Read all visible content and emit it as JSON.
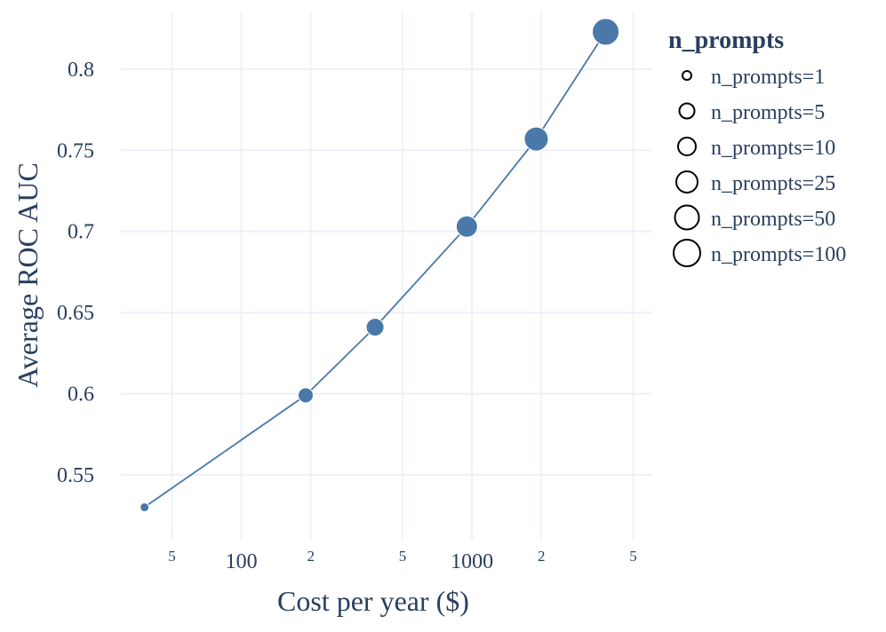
{
  "chart_data": {
    "type": "scatter",
    "xlabel": "Cost per year ($)",
    "ylabel": "Average ROC AUC",
    "x_scale": "log",
    "xlim": [
      30,
      6000
    ],
    "ylim": [
      0.51,
      0.835
    ],
    "grid": true,
    "legend_title": "n_prompts",
    "legend_position": "top-right",
    "line_color": "#4a78a8",
    "marker_color": "#4a78a8",
    "x_major_ticks": [
      {
        "value": 100,
        "label": "100"
      },
      {
        "value": 1000,
        "label": "1000"
      }
    ],
    "x_minor_ticks": [
      {
        "value": 50,
        "label": "5"
      },
      {
        "value": 200,
        "label": "2"
      },
      {
        "value": 500,
        "label": "5"
      },
      {
        "value": 2000,
        "label": "2"
      },
      {
        "value": 5000,
        "label": "5"
      }
    ],
    "y_ticks": [
      {
        "value": 0.55,
        "label": "0.55"
      },
      {
        "value": 0.6,
        "label": "0.6"
      },
      {
        "value": 0.65,
        "label": "0.65"
      },
      {
        "value": 0.7,
        "label": "0.7"
      },
      {
        "value": 0.75,
        "label": "0.75"
      },
      {
        "value": 0.8,
        "label": "0.8"
      }
    ],
    "series": [
      {
        "name": "n_prompts=1",
        "n_prompts": 1,
        "x": 38,
        "y": 0.53
      },
      {
        "name": "n_prompts=5",
        "n_prompts": 5,
        "x": 190,
        "y": 0.599
      },
      {
        "name": "n_prompts=10",
        "n_prompts": 10,
        "x": 380,
        "y": 0.641
      },
      {
        "name": "n_prompts=25",
        "n_prompts": 25,
        "x": 950,
        "y": 0.703
      },
      {
        "name": "n_prompts=50",
        "n_prompts": 50,
        "x": 1900,
        "y": 0.757
      },
      {
        "name": "n_prompts=100",
        "n_prompts": 100,
        "x": 3800,
        "y": 0.823
      }
    ]
  }
}
